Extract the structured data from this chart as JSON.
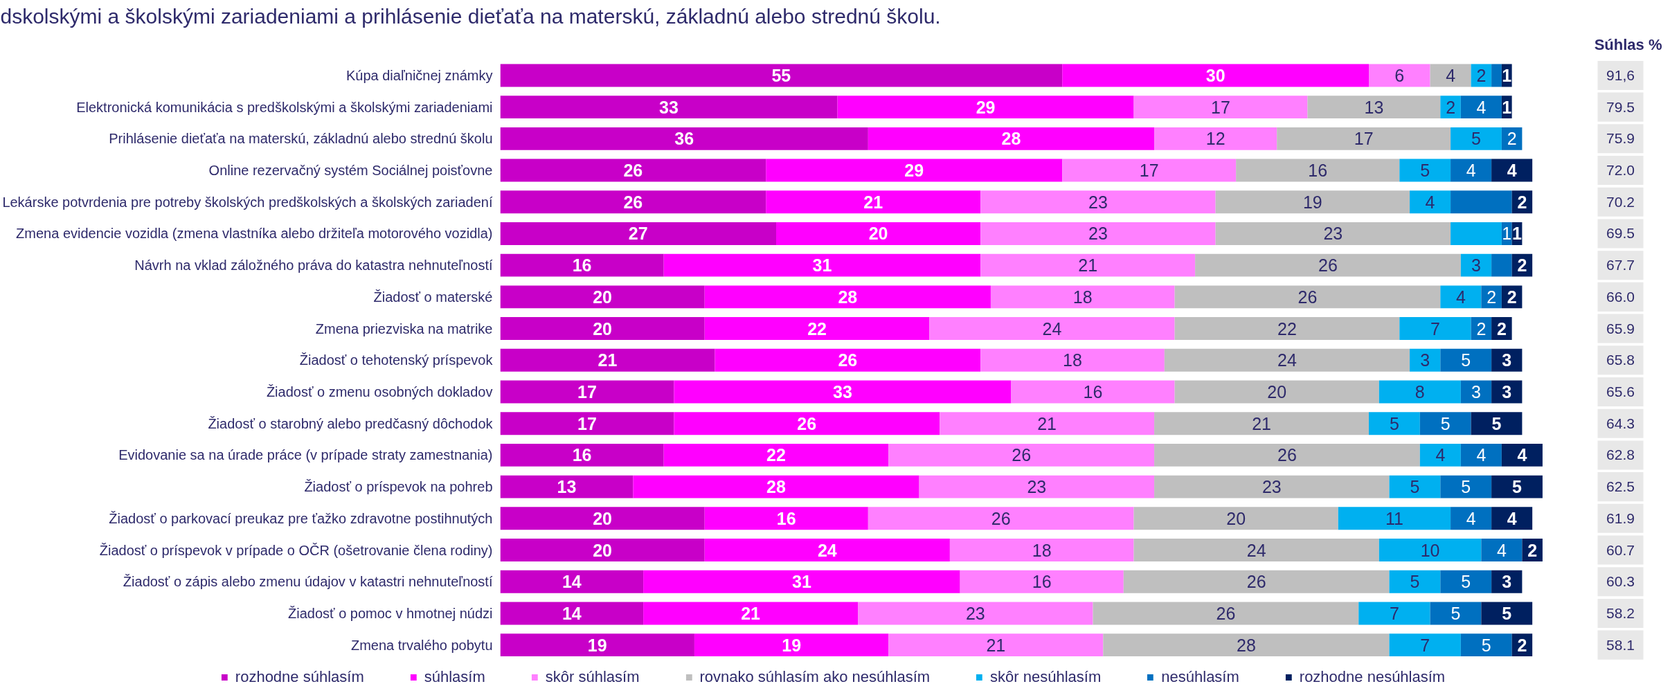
{
  "chart_data": {
    "type": "bar",
    "orientation": "horizontal",
    "stacked": true,
    "title": "dskolskými a školskými zariadeniami a prihlásenie dieťaťa na materskú, základnú alebo strednú školu.",
    "categories": [
      "Kúpa diaľničnej známky",
      "Elektronická komunikácia s predškolskými a školskými zariadeniami",
      "Prihlásenie dieťaťa na materskú, základnú alebo strednú školu",
      "Online rezervačný systém Sociálnej poisťovne",
      "Lekárske potvrdenia pre potreby školských predškolských a školských zariadení",
      "Zmena evidencie vozidla (zmena vlastníka alebo držiteľa motorového vozidla)",
      "Návrh na vklad záložného práva do katastra nehnuteľností",
      "Žiadosť o materské",
      "Zmena priezviska na matrike",
      "Žiadosť o tehotenský príspevok",
      "Žiadosť o zmenu osobných dokladov",
      "Žiadosť o starobný alebo predčasný dôchodok",
      "Evidovanie sa na úrade práce (v prípade straty zamestnania)",
      "Žiadosť o príspevok na pohreb",
      "Žiadosť o parkovací preukaz pre ťažko zdravotne postihnutých",
      "Žiadosť o príspevok v prípade o OČR (ošetrovanie člena rodiny)",
      "Žiadosť o zápis alebo zmenu údajov v katastri nehnuteľností",
      "Žiadosť o pomoc v hmotnej núdzi",
      "Zmena trvalého pobytu"
    ],
    "tick_labels": "y",
    "legend": "bottom",
    "series": [
      {
        "name": "rozhodne súhlasím",
        "color": "#c800c8",
        "values": [
          55,
          33,
          36,
          26,
          26,
          27,
          16,
          20,
          20,
          21,
          17,
          17,
          16,
          13,
          20,
          20,
          14,
          14,
          19
        ],
        "value_labels": [
          "55",
          "33",
          "36",
          "26",
          "26",
          "27",
          "16",
          "20",
          "20",
          "21",
          "17",
          "17",
          "16",
          "13",
          "20",
          "20",
          "14",
          "14",
          "19"
        ]
      },
      {
        "name": "súhlasím",
        "color": "#ff00ff",
        "values": [
          30,
          29,
          28,
          29,
          21,
          20,
          31,
          28,
          22,
          26,
          33,
          26,
          22,
          28,
          16,
          24,
          31,
          21,
          19
        ],
        "value_labels": [
          "30",
          "29",
          "28",
          "29",
          "21",
          "20",
          "31",
          "28",
          "22",
          "26",
          "33",
          "26",
          "22",
          "28",
          "16",
          "24",
          "31",
          "21",
          "19"
        ]
      },
      {
        "name": "skôr súhlasím",
        "color": "#ff80ff",
        "values": [
          6,
          17,
          12,
          17,
          23,
          23,
          21,
          18,
          24,
          18,
          16,
          21,
          26,
          23,
          26,
          18,
          16,
          23,
          21
        ],
        "value_labels": [
          "6",
          "17",
          "12",
          "17",
          "23",
          "23",
          "21",
          "18",
          "24",
          "18",
          "16",
          "21",
          "26",
          "23",
          "26",
          "18",
          "16",
          "23",
          "21"
        ]
      },
      {
        "name": "rovnako súhlasím ako nesúhlasím",
        "color": "#bfbfbf",
        "values": [
          4,
          13,
          17,
          16,
          19,
          23,
          26,
          26,
          22,
          24,
          20,
          21,
          26,
          23,
          20,
          24,
          26,
          26,
          28
        ],
        "value_labels": [
          "4",
          "13",
          "17",
          "16",
          "19",
          "23",
          "26",
          "26",
          "22",
          "24",
          "20",
          "21",
          "26",
          "23",
          "20",
          "24",
          "26",
          "26",
          "28"
        ]
      },
      {
        "name": "skôr nesúhlasím",
        "color": "#00b0f0",
        "values": [
          2,
          2,
          5,
          5,
          4,
          5,
          3,
          4,
          7,
          3,
          8,
          5,
          4,
          5,
          11,
          10,
          5,
          7,
          7
        ],
        "value_labels": [
          "2",
          "2",
          "5",
          "5",
          "4",
          null,
          "3",
          "4",
          "7",
          "3",
          "8",
          "5",
          "4",
          "5",
          "11",
          "10",
          "5",
          "7",
          "7"
        ]
      },
      {
        "name": "nesúhlasím",
        "color": "#0070c0",
        "values": [
          1,
          4,
          2,
          4,
          6,
          1,
          2,
          2,
          2,
          5,
          3,
          5,
          4,
          5,
          4,
          4,
          5,
          5,
          5
        ],
        "value_labels": [
          null,
          "4",
          "2",
          "4",
          null,
          "1",
          null,
          "2",
          "2",
          "5",
          "3",
          "5",
          "4",
          "5",
          "4",
          "4",
          "5",
          "5",
          "5"
        ]
      },
      {
        "name": "rozhodne nesúhlasím",
        "color": "#002060",
        "values": [
          1,
          1,
          null,
          4,
          2,
          1,
          2,
          2,
          2,
          3,
          3,
          5,
          4,
          5,
          4,
          2,
          3,
          5,
          2
        ],
        "value_labels": [
          "1",
          "1",
          null,
          "4",
          "2",
          "1",
          "2",
          "2",
          "2",
          "3",
          "3",
          "5",
          "4",
          "5",
          "4",
          "2",
          "3",
          "5",
          "2"
        ]
      }
    ],
    "annotations": [
      "Súhlas %",
      "91,6",
      "79.5",
      "75.9",
      "72.0",
      "70.2",
      "69.5",
      "67.7",
      "66.0",
      "65.9",
      "65.8",
      "65.6",
      "64.3",
      "62.8",
      "62.5",
      "61.9",
      "60.7",
      "60.3",
      "58.2",
      "58.1"
    ]
  }
}
